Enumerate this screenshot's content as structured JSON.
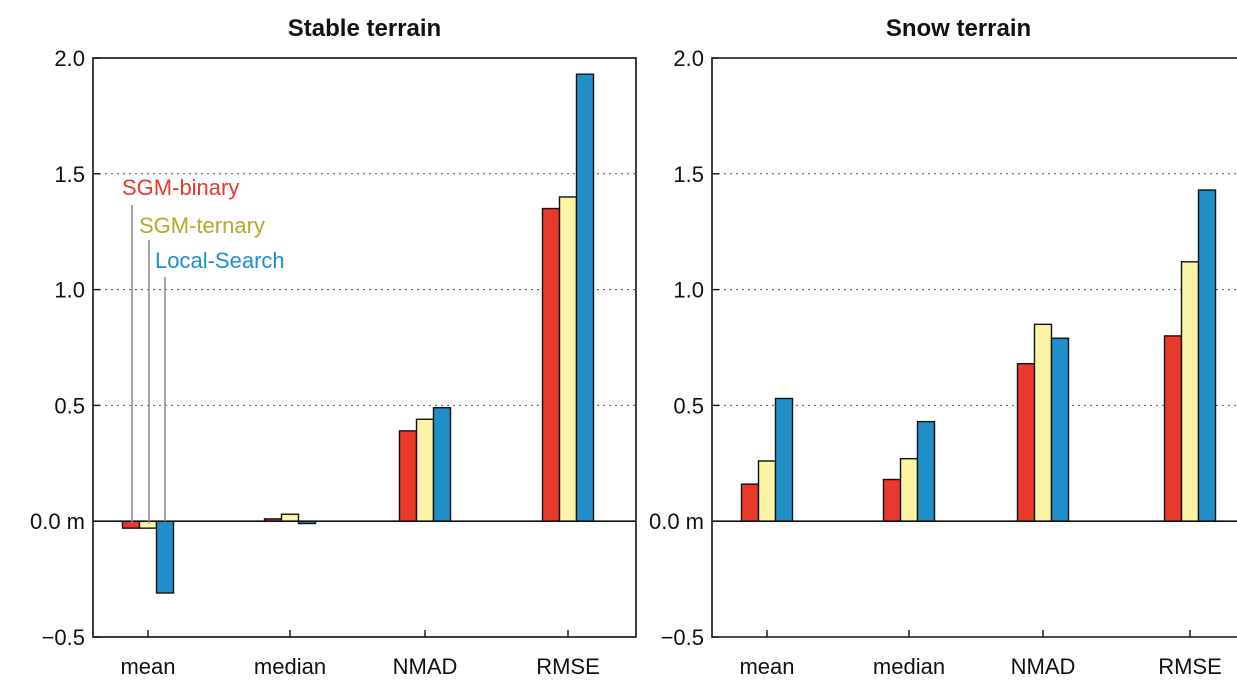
{
  "chart_data": [
    {
      "type": "bar",
      "title": "Stable terrain",
      "categories": [
        "mean",
        "median",
        "NMAD",
        "RMSE"
      ],
      "ylim": [
        -0.5,
        2.0
      ],
      "yticks": [
        -0.5,
        0.0,
        0.5,
        1.0,
        1.5,
        2.0
      ],
      "ytick_labels": [
        "−0.5",
        "0.0 m",
        "0.5",
        "1.0",
        "1.5",
        "2.0"
      ],
      "grid": "dotted horizontal",
      "legend": "upper-left, labels with leader lines to the mean bars",
      "series": [
        {
          "name": "SGM-binary",
          "color": "#e8392b",
          "values": [
            -0.03,
            0.01,
            0.39,
            1.35
          ]
        },
        {
          "name": "SGM-ternary",
          "color": "#fcf3a4",
          "values": [
            -0.03,
            0.03,
            0.44,
            1.4
          ]
        },
        {
          "name": "Local-Search",
          "color": "#1f8ec9",
          "values": [
            -0.31,
            -0.01,
            0.49,
            1.93
          ]
        }
      ]
    },
    {
      "type": "bar",
      "title": "Snow terrain",
      "categories": [
        "mean",
        "median",
        "NMAD",
        "RMSE"
      ],
      "ylim": [
        -0.5,
        2.0
      ],
      "yticks": [
        -0.5,
        0.0,
        0.5,
        1.0,
        1.5,
        2.0
      ],
      "ytick_labels": [
        "−0.5",
        "0.0 m",
        "0.5",
        "1.0",
        "1.5",
        "2.0"
      ],
      "grid": "dotted horizontal",
      "series": [
        {
          "color": "#e8392b",
          "values": [
            0.16,
            0.18,
            0.68,
            0.8
          ]
        },
        {
          "color": "#fcf3a4",
          "values": [
            0.26,
            0.27,
            0.85,
            1.12
          ]
        },
        {
          "color": "#1f8ec9",
          "values": [
            0.53,
            0.43,
            0.79,
            1.43
          ]
        }
      ]
    }
  ],
  "legend_text_colors": [
    "#e8392b",
    "#b5aa2a",
    "#1f8ec9"
  ]
}
